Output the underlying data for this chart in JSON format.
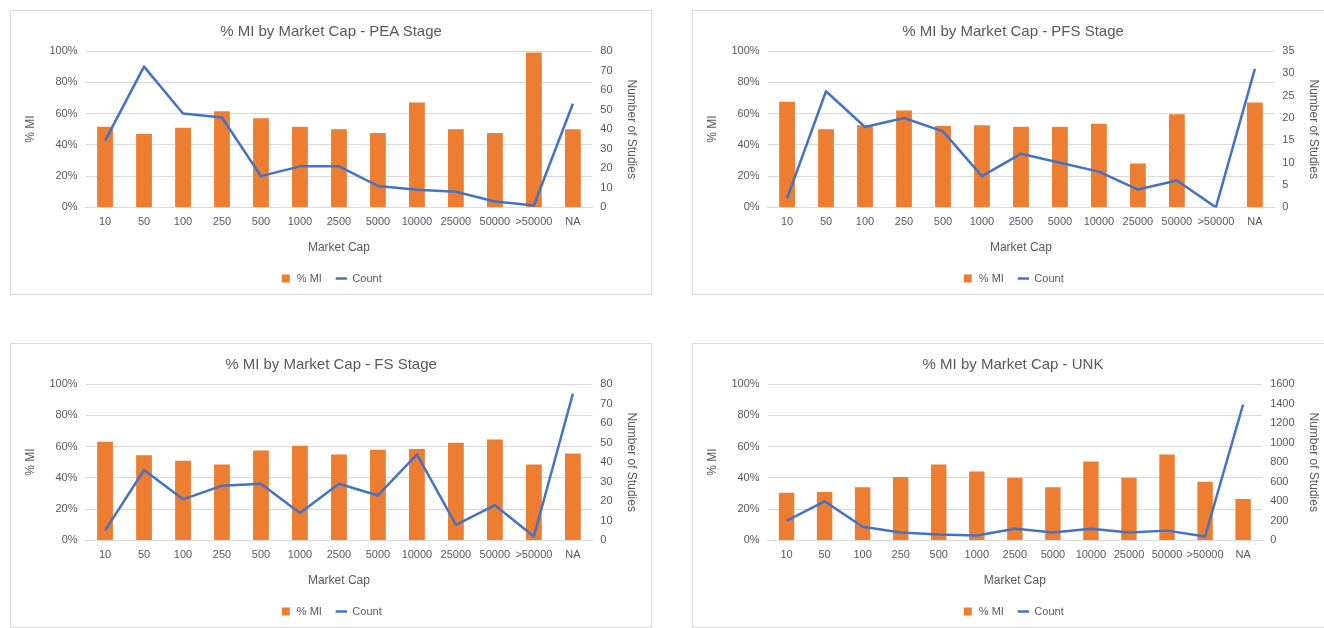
{
  "chart_data": [
    {
      "type": "bar",
      "title": "% MI by Market Cap - PEA Stage",
      "xlabel": "Market Cap",
      "ylabel": "% MI",
      "y2label": "Number of Studies",
      "categories": [
        "10",
        "50",
        "100",
        "250",
        "500",
        "1000",
        "2500",
        "5000",
        "10000",
        "25000",
        "50000",
        ">50000",
        "NA"
      ],
      "series": [
        {
          "name": "% MI",
          "color": "#ed7d31",
          "values": [
            51.5,
            47,
            51,
            61.5,
            57,
            51.5,
            50,
            47.5,
            67,
            50,
            47.5,
            99,
            50
          ]
        },
        {
          "name": "Count",
          "type": "line",
          "axis": "y2",
          "color": "#4472c4",
          "values": [
            34,
            72,
            48,
            46,
            16,
            21,
            21,
            11,
            9,
            8,
            3,
            1,
            53
          ]
        }
      ],
      "ylim": [
        0,
        100
      ],
      "yticks": [
        {
          "value": 0,
          "label": "0%"
        },
        {
          "value": 20,
          "label": "20%"
        },
        {
          "value": 40,
          "label": "40%"
        },
        {
          "value": 60,
          "label": "60%"
        },
        {
          "value": 80,
          "label": "80%"
        },
        {
          "value": 100,
          "label": "100%"
        }
      ],
      "y2lim": [
        0,
        80
      ],
      "y2ticks": [
        0,
        10,
        20,
        30,
        40,
        50,
        60,
        70,
        80
      ],
      "grid": "y",
      "legend": "bottom",
      "marker": "none",
      "line_style": "solid"
    },
    {
      "type": "bar",
      "title": "% MI by Market Cap - PFS Stage",
      "xlabel": "Market Cap",
      "ylabel": "% MI",
      "y2label": "Number of Studies",
      "categories": [
        "10",
        "50",
        "100",
        "250",
        "500",
        "1000",
        "2500",
        "5000",
        "10000",
        "25000",
        "50000",
        ">50000",
        "NA"
      ],
      "series": [
        {
          "name": "% MI",
          "color": "#ed7d31",
          "values": [
            67.5,
            50,
            52.5,
            62,
            52,
            52.5,
            51.5,
            51.5,
            53.5,
            28,
            59.5,
            null,
            67
          ]
        },
        {
          "name": "Count",
          "type": "line",
          "axis": "y2",
          "color": "#4472c4",
          "values": [
            2,
            26,
            18,
            20,
            17,
            7,
            12,
            10,
            8,
            4,
            6,
            0,
            31
          ]
        }
      ],
      "ylim": [
        0,
        100
      ],
      "yticks": [
        {
          "value": 0,
          "label": "0%"
        },
        {
          "value": 20,
          "label": "20%"
        },
        {
          "value": 40,
          "label": "40%"
        },
        {
          "value": 60,
          "label": "60%"
        },
        {
          "value": 80,
          "label": "80%"
        },
        {
          "value": 100,
          "label": "100%"
        }
      ],
      "y2lim": [
        0,
        35
      ],
      "y2ticks": [
        0,
        5,
        10,
        15,
        20,
        25,
        30,
        35
      ],
      "grid": "y",
      "legend": "bottom",
      "marker": "none",
      "line_style": "solid"
    },
    {
      "type": "bar",
      "title": "% MI by Market Cap - FS Stage",
      "xlabel": "Market Cap",
      "ylabel": "% MI",
      "y2label": "Number of Studies",
      "categories": [
        "10",
        "50",
        "100",
        "250",
        "500",
        "1000",
        "2500",
        "5000",
        "10000",
        "25000",
        "50000",
        ">50000",
        "NA"
      ],
      "series": [
        {
          "name": "% MI",
          "color": "#ed7d31",
          "values": [
            63,
            54.5,
            51,
            48.5,
            57.5,
            60.5,
            55,
            58,
            58.5,
            62.5,
            64.5,
            48.5,
            55.5
          ]
        },
        {
          "name": "Count",
          "type": "line",
          "axis": "y2",
          "color": "#4472c4",
          "values": [
            5,
            36,
            21,
            28,
            29,
            14,
            29,
            23,
            44,
            8,
            18,
            2,
            75
          ]
        }
      ],
      "ylim": [
        0,
        100
      ],
      "yticks": [
        {
          "value": 0,
          "label": "0%"
        },
        {
          "value": 20,
          "label": "20%"
        },
        {
          "value": 40,
          "label": "40%"
        },
        {
          "value": 60,
          "label": "60%"
        },
        {
          "value": 80,
          "label": "80%"
        },
        {
          "value": 100,
          "label": "100%"
        }
      ],
      "y2lim": [
        0,
        80
      ],
      "y2ticks": [
        0,
        10,
        20,
        30,
        40,
        50,
        60,
        70,
        80
      ],
      "grid": "y",
      "legend": "bottom",
      "marker": "none",
      "line_style": "solid"
    },
    {
      "type": "bar",
      "title": "% MI by Market Cap - UNK",
      "xlabel": "Market Cap",
      "ylabel": "% MI",
      "y2label": "Number of Studies",
      "categories": [
        "10",
        "50",
        "100",
        "250",
        "500",
        "1000",
        "2500",
        "5000",
        "10000",
        "25000",
        "50000",
        ">50000",
        "NA"
      ],
      "series": [
        {
          "name": "% MI",
          "color": "#ed7d31",
          "values": [
            30.5,
            31,
            34,
            40.5,
            48.5,
            44,
            40,
            34,
            50.5,
            40,
            55,
            37.5,
            26.5
          ]
        },
        {
          "name": "Count",
          "type": "line",
          "axis": "y2",
          "color": "#4472c4",
          "values": [
            200,
            400,
            140,
            80,
            60,
            50,
            120,
            80,
            120,
            80,
            100,
            40,
            1390
          ]
        }
      ],
      "ylim": [
        0,
        100
      ],
      "yticks": [
        {
          "value": 0,
          "label": "0%"
        },
        {
          "value": 20,
          "label": "20%"
        },
        {
          "value": 40,
          "label": "40%"
        },
        {
          "value": 60,
          "label": "60%"
        },
        {
          "value": 80,
          "label": "80%"
        },
        {
          "value": 100,
          "label": "100%"
        }
      ],
      "y2lim": [
        0,
        1600
      ],
      "y2ticks": [
        0,
        200,
        400,
        600,
        800,
        1000,
        1200,
        1400,
        1600
      ],
      "grid": "y",
      "legend": "bottom",
      "marker": "none",
      "line_style": "solid"
    }
  ]
}
